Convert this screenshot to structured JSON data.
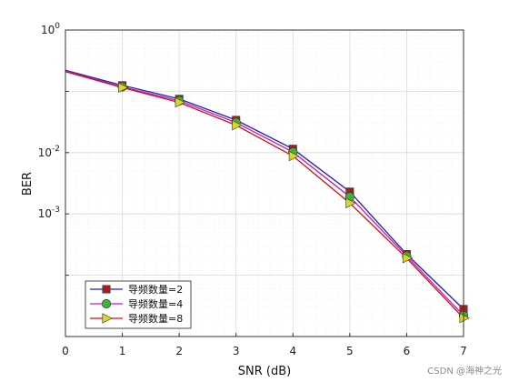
{
  "chart_data": {
    "type": "line",
    "xlabel": "SNR (dB)",
    "ylabel": "BER",
    "x_ticks": [
      "0",
      "1",
      "2",
      "3",
      "4",
      "5",
      "6",
      "7"
    ],
    "y_tick_labels": [
      {
        "value": 1,
        "label": "10",
        "exp": "0"
      },
      {
        "value": 0.01,
        "label": "10",
        "exp": "-2"
      },
      {
        "value": 0.001,
        "label": "10",
        "exp": "-3"
      }
    ],
    "xlim": [
      0,
      7
    ],
    "ylim": [
      1e-05,
      1
    ],
    "y_scale": "log",
    "grid": true,
    "legend_position": "bottom-left",
    "x": [
      0,
      1,
      2,
      3,
      4,
      5,
      6,
      7
    ],
    "series": [
      {
        "name": "导频数量=2",
        "color": "#1f1fb4",
        "marker": "square",
        "marker_color": "#a32020",
        "values": [
          0.22,
          0.125,
          0.075,
          0.034,
          0.0115,
          0.0023,
          0.00022,
          2.8e-05
        ]
      },
      {
        "name": "导频数量=4",
        "color": "#c01cc0",
        "marker": "circle",
        "marker_color": "#3cb43c",
        "values": [
          0.215,
          0.118,
          0.07,
          0.031,
          0.0102,
          0.0019,
          0.000205,
          2.2e-05
        ]
      },
      {
        "name": "导频数量=8",
        "color": "#d01010",
        "marker": "triangle-right",
        "marker_color": "#d8d820",
        "values": [
          0.21,
          0.115,
          0.066,
          0.028,
          0.0088,
          0.0015,
          0.00019,
          2e-05
        ]
      }
    ]
  },
  "watermark": "CSDN @海神之光"
}
